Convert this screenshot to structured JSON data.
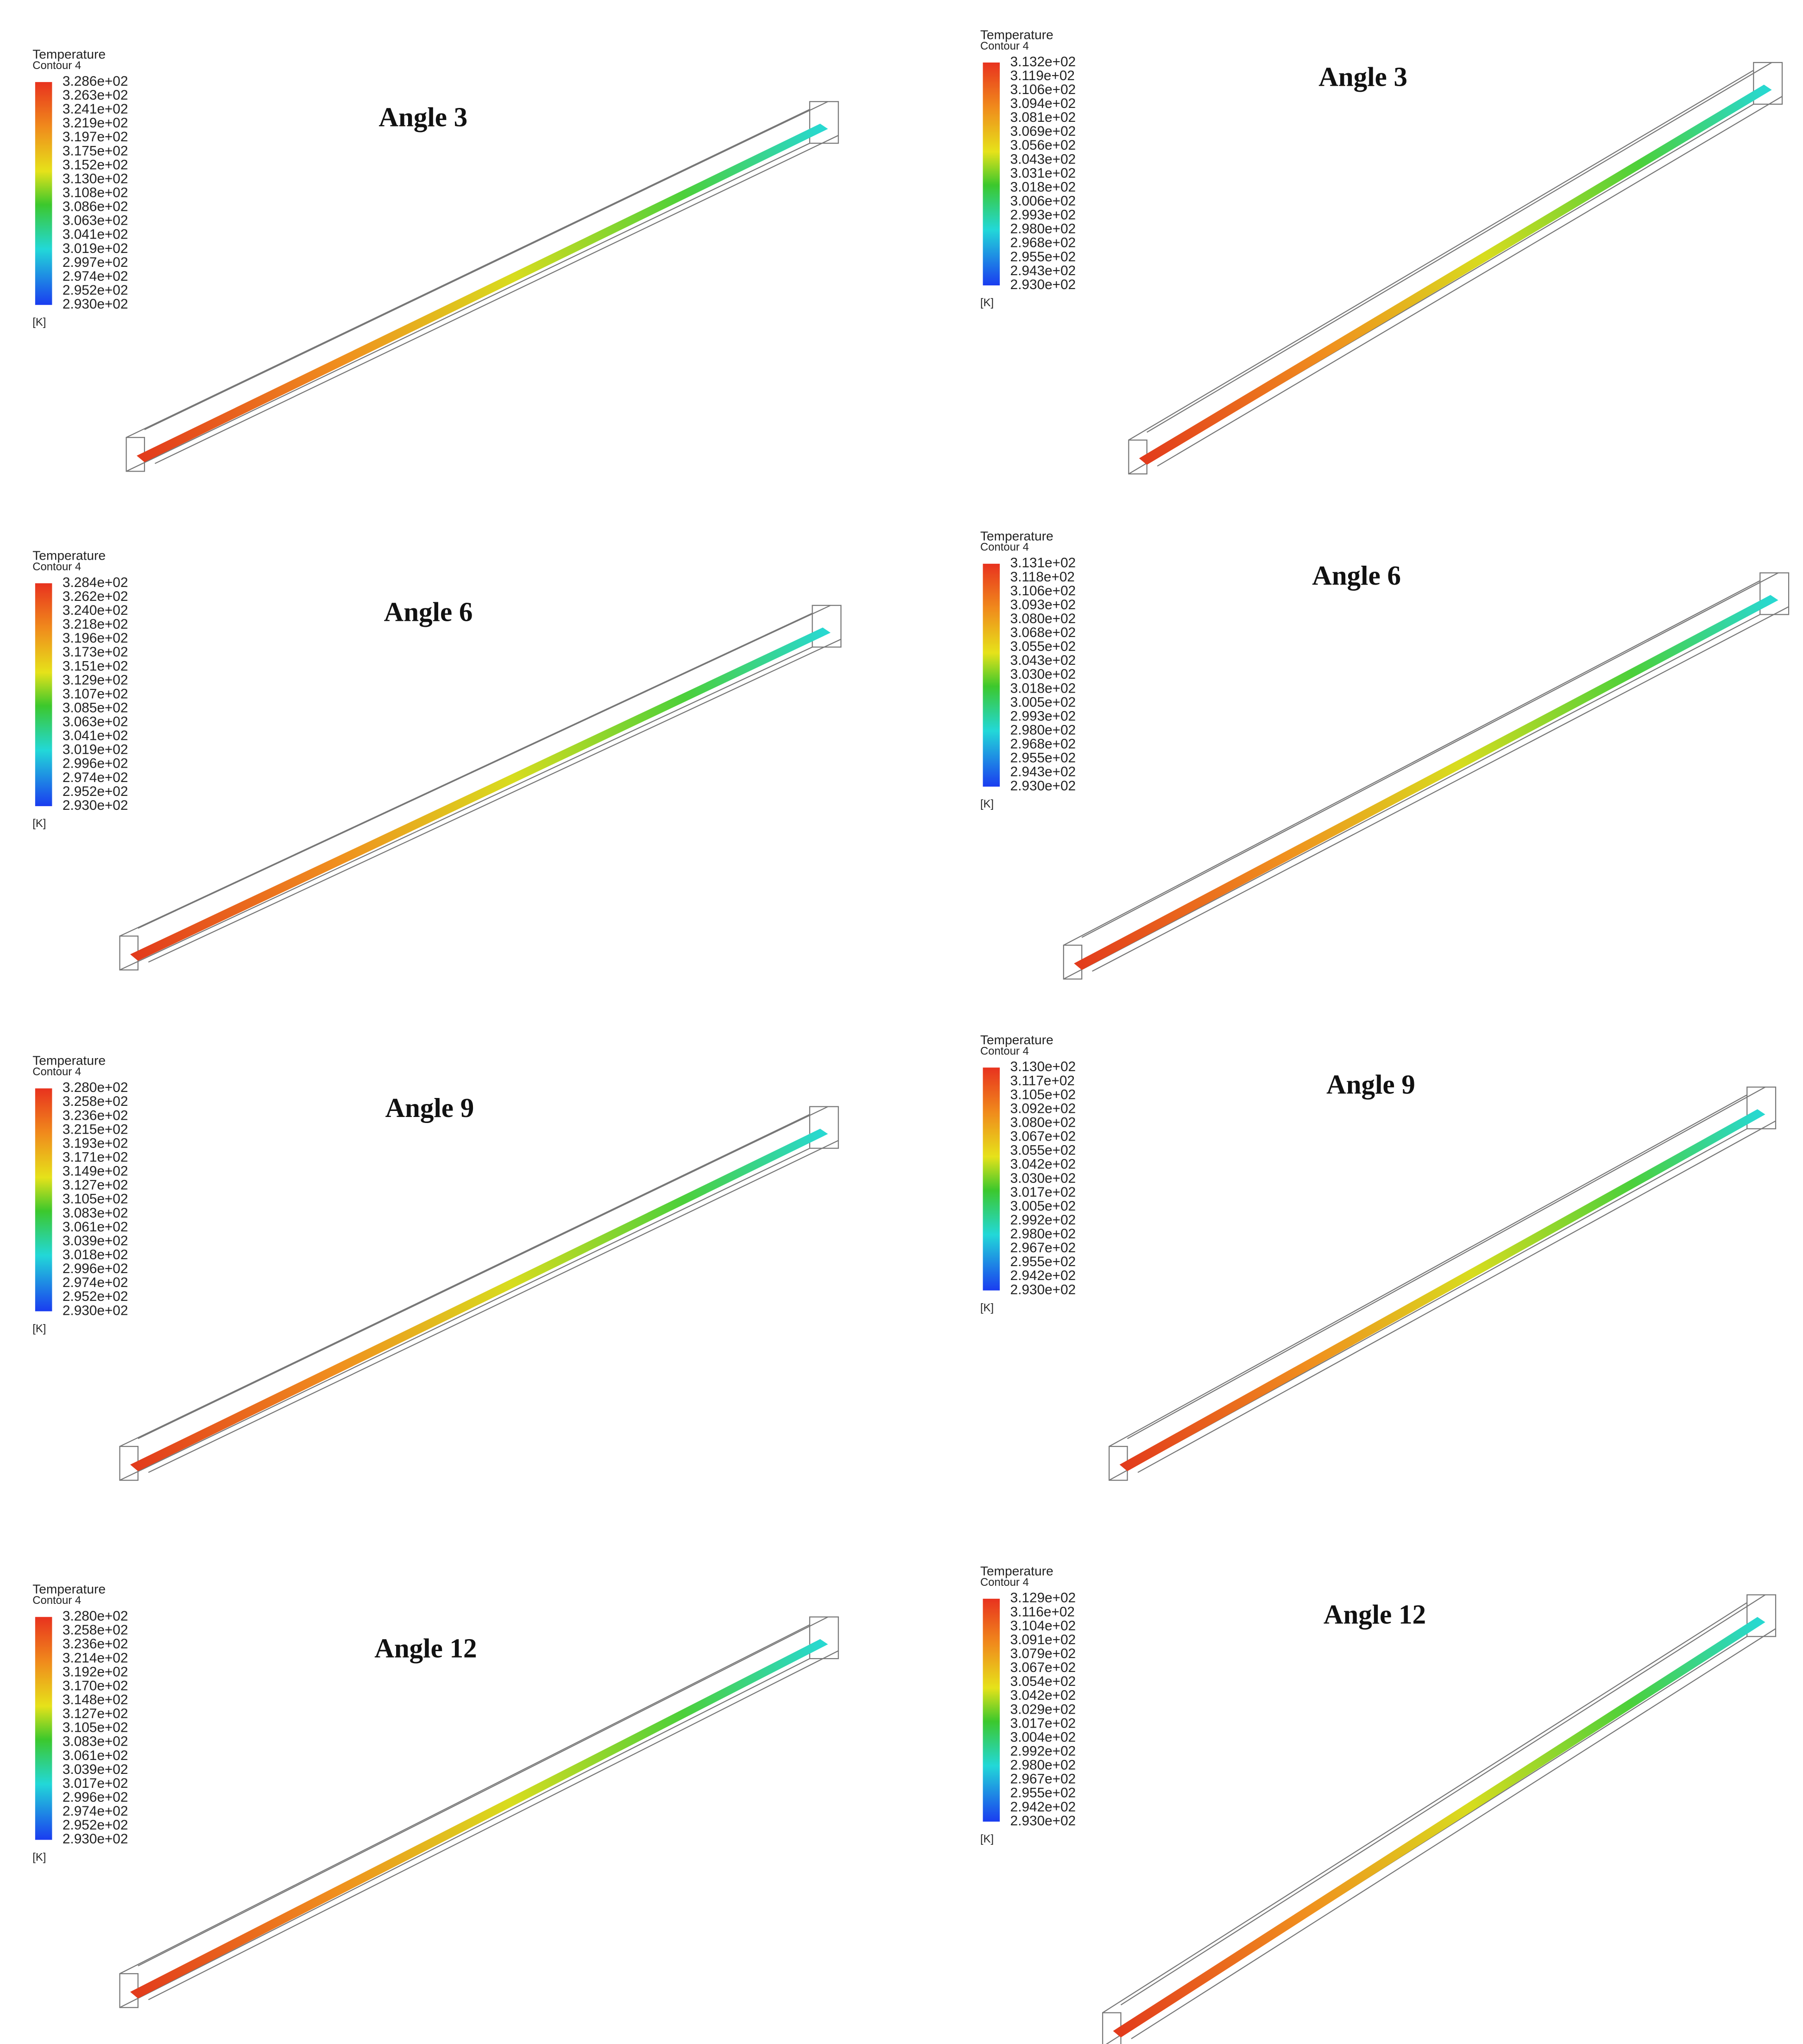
{
  "panels": [
    {
      "title": "Angle 3",
      "legend_title": "Temperature",
      "legend_subtitle": "Contour 4",
      "unit": "[K]",
      "labels": [
        "3.286e+02",
        "3.263e+02",
        "3.241e+02",
        "3.219e+02",
        "3.197e+02",
        "3.175e+02",
        "3.152e+02",
        "3.130e+02",
        "3.108e+02",
        "3.086e+02",
        "3.063e+02",
        "3.041e+02",
        "3.019e+02",
        "2.997e+02",
        "2.974e+02",
        "2.952e+02",
        "2.930e+02"
      ]
    },
    {
      "title": "Angle 3",
      "legend_title": "Temperature",
      "legend_subtitle": "Contour 4",
      "unit": "[K]",
      "labels": [
        "3.132e+02",
        "3.119e+02",
        "3.106e+02",
        "3.094e+02",
        "3.081e+02",
        "3.069e+02",
        "3.056e+02",
        "3.043e+02",
        "3.031e+02",
        "3.018e+02",
        "3.006e+02",
        "2.993e+02",
        "2.980e+02",
        "2.968e+02",
        "2.955e+02",
        "2.943e+02",
        "2.930e+02"
      ]
    },
    {
      "title": "Angle 6",
      "legend_title": "Temperature",
      "legend_subtitle": "Contour 4",
      "unit": "[K]",
      "labels": [
        "3.284e+02",
        "3.262e+02",
        "3.240e+02",
        "3.218e+02",
        "3.196e+02",
        "3.173e+02",
        "3.151e+02",
        "3.129e+02",
        "3.107e+02",
        "3.085e+02",
        "3.063e+02",
        "3.041e+02",
        "3.019e+02",
        "2.996e+02",
        "2.974e+02",
        "2.952e+02",
        "2.930e+02"
      ]
    },
    {
      "title": "Angle 6",
      "legend_title": "Temperature",
      "legend_subtitle": "Contour 4",
      "unit": "[K]",
      "labels": [
        "3.131e+02",
        "3.118e+02",
        "3.106e+02",
        "3.093e+02",
        "3.080e+02",
        "3.068e+02",
        "3.055e+02",
        "3.043e+02",
        "3.030e+02",
        "3.018e+02",
        "3.005e+02",
        "2.993e+02",
        "2.980e+02",
        "2.968e+02",
        "2.955e+02",
        "2.943e+02",
        "2.930e+02"
      ]
    },
    {
      "title": "Angle 9",
      "legend_title": "Temperature",
      "legend_subtitle": "Contour 4",
      "unit": "[K]",
      "labels": [
        "3.280e+02",
        "3.258e+02",
        "3.236e+02",
        "3.215e+02",
        "3.193e+02",
        "3.171e+02",
        "3.149e+02",
        "3.127e+02",
        "3.105e+02",
        "3.083e+02",
        "3.061e+02",
        "3.039e+02",
        "3.018e+02",
        "2.996e+02",
        "2.974e+02",
        "2.952e+02",
        "2.930e+02"
      ]
    },
    {
      "title": "Angle 9",
      "legend_title": "Temperature",
      "legend_subtitle": "Contour 4",
      "unit": "[K]",
      "labels": [
        "3.130e+02",
        "3.117e+02",
        "3.105e+02",
        "3.092e+02",
        "3.080e+02",
        "3.067e+02",
        "3.055e+02",
        "3.042e+02",
        "3.030e+02",
        "3.017e+02",
        "3.005e+02",
        "2.992e+02",
        "2.980e+02",
        "2.967e+02",
        "2.955e+02",
        "2.942e+02",
        "2.930e+02"
      ]
    },
    {
      "title": "Angle 12",
      "legend_title": "Temperature",
      "legend_subtitle": "Contour 4",
      "unit": "[K]",
      "labels": [
        "3.280e+02",
        "3.258e+02",
        "3.236e+02",
        "3.214e+02",
        "3.192e+02",
        "3.170e+02",
        "3.148e+02",
        "3.127e+02",
        "3.105e+02",
        "3.083e+02",
        "3.061e+02",
        "3.039e+02",
        "3.017e+02",
        "2.996e+02",
        "2.974e+02",
        "2.952e+02",
        "2.930e+02"
      ]
    },
    {
      "title": "Angle 12",
      "legend_title": "Temperature",
      "legend_subtitle": "Contour 4",
      "unit": "[K]",
      "labels": [
        "3.129e+02",
        "3.116e+02",
        "3.104e+02",
        "3.091e+02",
        "3.079e+02",
        "3.067e+02",
        "3.054e+02",
        "3.042e+02",
        "3.029e+02",
        "3.017e+02",
        "3.004e+02",
        "2.992e+02",
        "2.980e+02",
        "2.967e+02",
        "2.955e+02",
        "2.942e+02",
        "2.930e+02"
      ]
    }
  ]
}
